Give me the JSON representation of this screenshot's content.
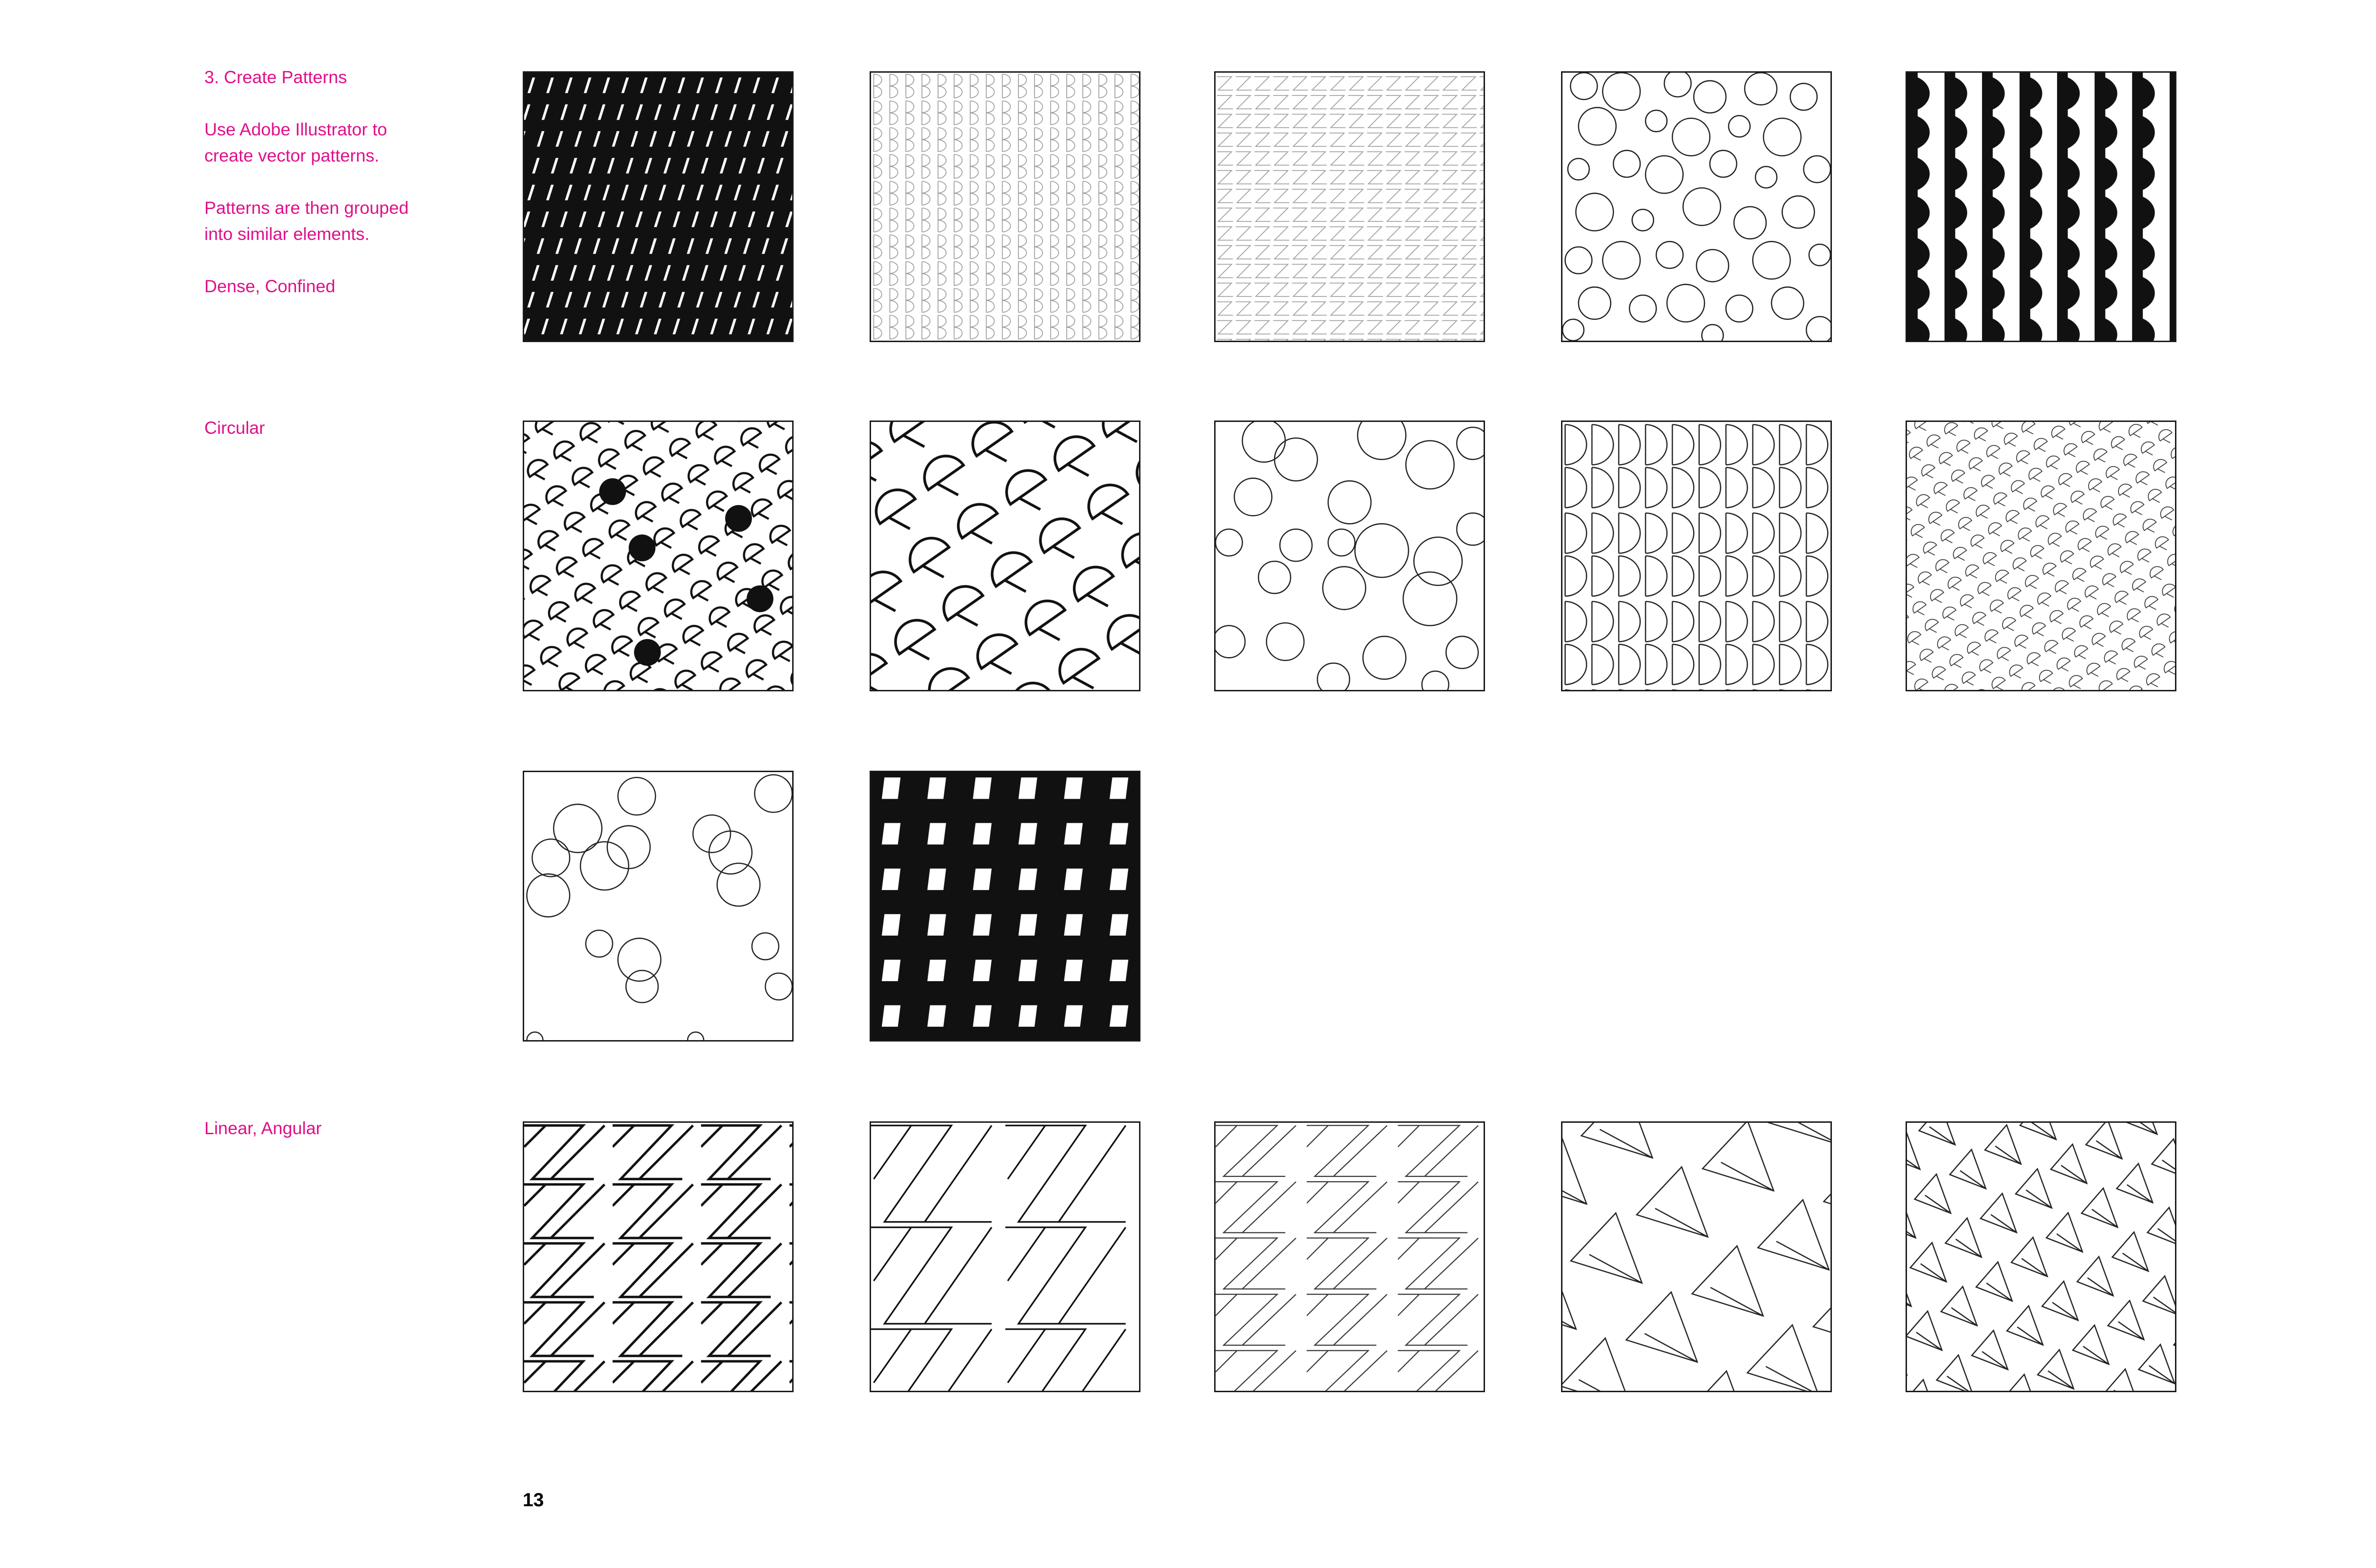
{
  "section": {
    "heading": "3. Create Patterns",
    "intro_line1": "Use Adobe Illustrator to",
    "intro_line2": "create vector patterns.",
    "group_line1": "Patterns are then grouped",
    "group_line2": "into similar elements."
  },
  "categories": {
    "dense": "Dense, Confined",
    "circular": "Circular",
    "linear": "Linear, Angular"
  },
  "page_number": "13",
  "colors": {
    "accent": "#e0108a",
    "ink": "#1a1a1a"
  }
}
